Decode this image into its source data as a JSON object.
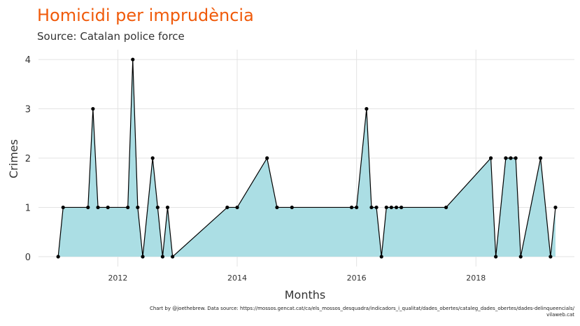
{
  "chart_data": {
    "type": "area",
    "title": "Homicidi per imprudència",
    "subtitle": "Source: Catalan police force",
    "xlabel": "Months",
    "ylabel": "Crimes",
    "caption_line1": "Chart by @joethebrew. Data source: https://mossos.gencat.cat/ca/els_mossos_desquadra/indicadors_i_qualitat/dades_obertes/cataleg_dades_obertes/dades-delinqueencials/",
    "caption_line2": "vilaweb.cat",
    "x_ticks": [
      "2012",
      "2014",
      "2016",
      "2018"
    ],
    "y_ticks": [
      "0",
      "1",
      "2",
      "3",
      "4"
    ],
    "xlim": [
      2010.67,
      2019.65
    ],
    "ylim": [
      -0.2,
      4.2
    ],
    "grid": true,
    "fill_color": "#abdee4",
    "line_color": "#000000",
    "points": [
      {
        "x": 2011.0,
        "y": 0
      },
      {
        "x": 2011.083,
        "y": 1
      },
      {
        "x": 2011.5,
        "y": 1
      },
      {
        "x": 2011.583,
        "y": 3
      },
      {
        "x": 2011.667,
        "y": 1
      },
      {
        "x": 2011.833,
        "y": 1
      },
      {
        "x": 2012.167,
        "y": 1
      },
      {
        "x": 2012.25,
        "y": 4
      },
      {
        "x": 2012.333,
        "y": 1
      },
      {
        "x": 2012.417,
        "y": 0
      },
      {
        "x": 2012.583,
        "y": 2
      },
      {
        "x": 2012.667,
        "y": 1
      },
      {
        "x": 2012.75,
        "y": 0
      },
      {
        "x": 2012.833,
        "y": 1
      },
      {
        "x": 2012.917,
        "y": 0
      },
      {
        "x": 2013.833,
        "y": 1
      },
      {
        "x": 2014.0,
        "y": 1
      },
      {
        "x": 2014.5,
        "y": 2
      },
      {
        "x": 2014.667,
        "y": 1
      },
      {
        "x": 2014.917,
        "y": 1
      },
      {
        "x": 2015.917,
        "y": 1
      },
      {
        "x": 2016.0,
        "y": 1
      },
      {
        "x": 2016.167,
        "y": 3
      },
      {
        "x": 2016.25,
        "y": 1
      },
      {
        "x": 2016.333,
        "y": 1
      },
      {
        "x": 2016.417,
        "y": 0
      },
      {
        "x": 2016.5,
        "y": 1
      },
      {
        "x": 2016.583,
        "y": 1
      },
      {
        "x": 2016.667,
        "y": 1
      },
      {
        "x": 2016.75,
        "y": 1
      },
      {
        "x": 2017.5,
        "y": 1
      },
      {
        "x": 2018.25,
        "y": 2
      },
      {
        "x": 2018.333,
        "y": 0
      },
      {
        "x": 2018.5,
        "y": 2
      },
      {
        "x": 2018.583,
        "y": 2
      },
      {
        "x": 2018.667,
        "y": 2
      },
      {
        "x": 2018.75,
        "y": 0
      },
      {
        "x": 2019.083,
        "y": 2
      },
      {
        "x": 2019.25,
        "y": 0
      },
      {
        "x": 2019.333,
        "y": 1
      }
    ]
  }
}
